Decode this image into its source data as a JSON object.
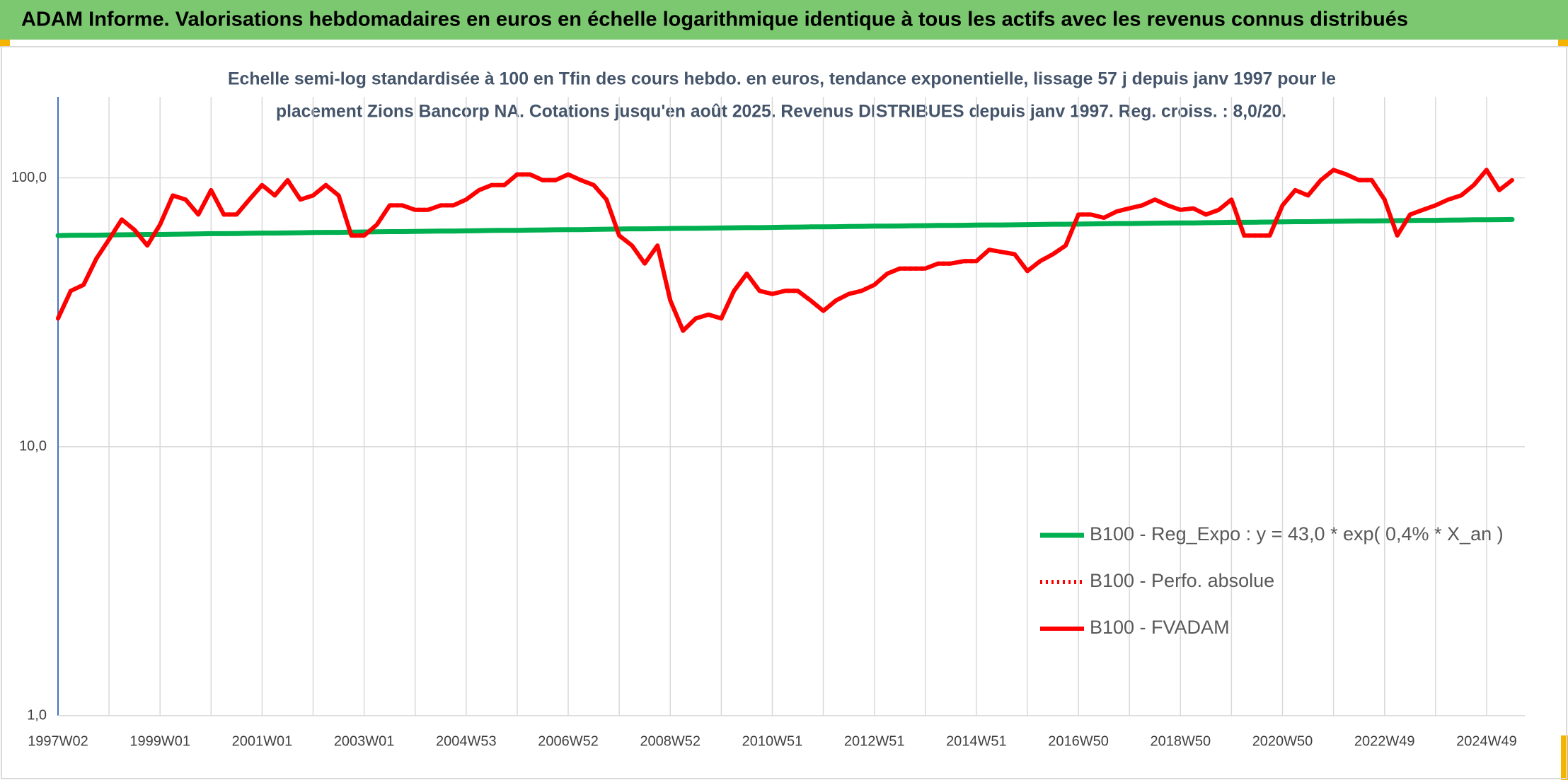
{
  "header": {
    "title": "ADAM Informe. Valorisations hebdomadaires en euros en échelle logarithmique identique à tous les actifs avec les revenus connus distribués"
  },
  "chart_data": {
    "type": "line",
    "subtitle": [
      "Echelle semi-log standardisée à 100 en Tfin des cours hebdo. en euros, tendance exponentielle, lissage 57 j depuis janv 1997 pour le",
      "placement Zions Bancorp NA. Cotations jusqu'en août 2025. Revenus DISTRIBUES depuis janv 1997. Reg. croiss. : 8,0/20."
    ],
    "log_y": true,
    "ylim": [
      1,
      200
    ],
    "yticks": [
      {
        "value": 1,
        "label": "1,0"
      },
      {
        "value": 10,
        "label": "10,0"
      },
      {
        "value": 100,
        "label": "100,0"
      }
    ],
    "grid": true,
    "categories": [
      "1997W02",
      null,
      null,
      null,
      null,
      null,
      null,
      null,
      "1999W01",
      null,
      null,
      null,
      null,
      null,
      null,
      null,
      "2001W01",
      null,
      null,
      null,
      null,
      null,
      null,
      null,
      "2003W01",
      null,
      null,
      null,
      null,
      null,
      null,
      null,
      "2004W53",
      null,
      null,
      null,
      null,
      null,
      null,
      null,
      "2006W52",
      null,
      null,
      null,
      null,
      null,
      null,
      null,
      "2008W52",
      null,
      null,
      null,
      null,
      null,
      null,
      null,
      "2010W51",
      null,
      null,
      null,
      null,
      null,
      null,
      null,
      "2012W51",
      null,
      null,
      null,
      null,
      null,
      null,
      null,
      "2014W51",
      null,
      null,
      null,
      null,
      null,
      null,
      null,
      "2016W50",
      null,
      null,
      null,
      null,
      null,
      null,
      null,
      "2018W50",
      null,
      null,
      null,
      null,
      null,
      null,
      null,
      "2020W50",
      null,
      null,
      null,
      null,
      null,
      null,
      null,
      "2022W49",
      null,
      null,
      null,
      null,
      null,
      null,
      null,
      "2024W49",
      null,
      null
    ],
    "series": [
      {
        "name": "B100 - Reg_Expo : y = 43,0 * exp( 0,4% *  X_an )",
        "color": "#00b050",
        "style": "solid",
        "values": [
          61.0,
          61.1,
          61.2,
          61.2,
          61.3,
          61.4,
          61.5,
          61.6,
          61.6,
          61.7,
          61.8,
          61.9,
          62.0,
          62.0,
          62.1,
          62.2,
          62.3,
          62.3,
          62.4,
          62.5,
          62.6,
          62.7,
          62.7,
          62.8,
          62.9,
          63.0,
          63.1,
          63.1,
          63.2,
          63.3,
          63.4,
          63.4,
          63.5,
          63.6,
          63.7,
          63.8,
          63.8,
          63.9,
          64.0,
          64.1,
          64.2,
          64.2,
          64.3,
          64.4,
          64.5,
          64.6,
          64.6,
          64.7,
          64.8,
          64.9,
          64.9,
          65.0,
          65.1,
          65.2,
          65.3,
          65.3,
          65.4,
          65.5,
          65.6,
          65.7,
          65.7,
          65.8,
          65.9,
          66.0,
          66.1,
          66.1,
          66.2,
          66.3,
          66.4,
          66.5,
          66.5,
          66.6,
          66.7,
          66.8,
          66.8,
          66.9,
          67.0,
          67.1,
          67.2,
          67.2,
          67.3,
          67.4,
          67.5,
          67.6,
          67.6,
          67.7,
          67.8,
          67.9,
          68.0,
          68.0,
          68.1,
          68.2,
          68.3,
          68.3,
          68.4,
          68.5,
          68.6,
          68.7,
          68.7,
          68.8,
          68.9,
          69.0,
          69.1,
          69.1,
          69.2,
          69.3,
          69.4,
          69.5,
          69.5,
          69.6,
          69.7,
          69.8,
          69.8,
          69.9,
          70.0
        ]
      },
      {
        "name": "B100 - Perfo. absolue",
        "color": "#ff0000",
        "style": "dotted",
        "values": [
          30,
          38,
          40,
          50,
          59,
          70,
          64,
          56,
          67,
          86,
          83,
          73,
          90,
          73,
          73,
          83,
          94,
          86,
          98,
          83,
          86,
          94,
          86,
          61,
          61,
          67,
          79,
          79,
          76,
          76,
          79,
          79,
          83,
          90,
          94,
          94,
          103,
          103,
          98,
          98,
          103,
          98,
          94,
          83,
          61,
          56,
          48,
          56,
          35,
          27,
          30,
          31,
          30,
          38,
          44,
          38,
          37,
          38,
          38,
          35,
          32,
          35,
          37,
          38,
          40,
          44,
          46,
          46,
          46,
          48,
          48,
          49,
          49,
          54,
          53,
          52,
          45,
          49,
          52,
          56,
          73,
          73,
          71,
          75,
          77,
          79,
          83,
          79,
          76,
          77,
          73,
          76,
          83,
          61,
          61,
          61,
          79,
          90,
          86,
          98,
          107,
          103,
          98,
          98,
          83,
          61,
          73,
          76,
          79,
          83,
          86,
          94,
          107,
          90,
          98
        ]
      },
      {
        "name": "B100 - FVADAM",
        "color": "#ff0000",
        "style": "solid",
        "values": [
          30,
          38,
          40,
          50,
          59,
          70,
          64,
          56,
          67,
          86,
          83,
          73,
          90,
          73,
          73,
          83,
          94,
          86,
          98,
          83,
          86,
          94,
          86,
          61,
          61,
          67,
          79,
          79,
          76,
          76,
          79,
          79,
          83,
          90,
          94,
          94,
          103,
          103,
          98,
          98,
          103,
          98,
          94,
          83,
          61,
          56,
          48,
          56,
          35,
          27,
          30,
          31,
          30,
          38,
          44,
          38,
          37,
          38,
          38,
          35,
          32,
          35,
          37,
          38,
          40,
          44,
          46,
          46,
          46,
          48,
          48,
          49,
          49,
          54,
          53,
          52,
          45,
          49,
          52,
          56,
          73,
          73,
          71,
          75,
          77,
          79,
          83,
          79,
          76,
          77,
          73,
          76,
          83,
          61,
          61,
          61,
          79,
          90,
          86,
          98,
          107,
          103,
          98,
          98,
          83,
          61,
          73,
          76,
          79,
          83,
          86,
          94,
          107,
          90,
          98
        ]
      }
    ]
  }
}
